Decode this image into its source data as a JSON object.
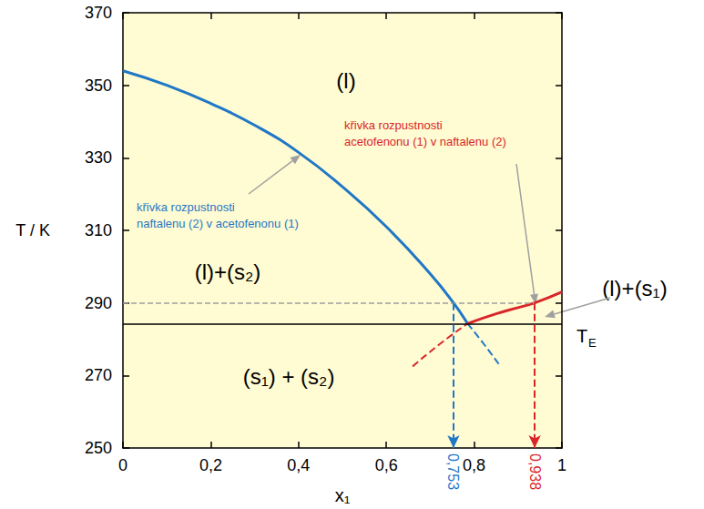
{
  "chart_data": {
    "type": "line",
    "xlabel": "x₁",
    "ylabel": "T / K",
    "xlim": [
      0,
      1
    ],
    "ylim": [
      250,
      370
    ],
    "xticks": [
      0,
      {
        "value": 0.2,
        "label": "0,2"
      },
      {
        "value": 0.4,
        "label": "0,4"
      },
      {
        "value": 0.6,
        "label": "0,6"
      },
      {
        "value": 0.8,
        "label": "0,8"
      },
      1
    ],
    "yticks": [
      250,
      270,
      290,
      310,
      330,
      350,
      370
    ],
    "grid": false,
    "series": [
      {
        "color": "#1f77c6",
        "line_style": "solid",
        "x": [
          0,
          0.1,
          0.2,
          0.3,
          0.4,
          0.5,
          0.6,
          0.7,
          0.753,
          0.785
        ],
        "values": [
          354,
          350,
          345,
          339,
          331.5,
          322,
          311,
          298,
          290,
          284.3
        ]
      },
      {
        "color": "#1f77c6",
        "line_style": "dashed",
        "x": [
          0.785,
          0.82,
          0.86
        ],
        "values": [
          284.3,
          279,
          272.5
        ]
      },
      {
        "color": "#d9262b",
        "line_style": "solid",
        "x": [
          0.785,
          0.85,
          0.9,
          0.938,
          1
        ],
        "values": [
          284.3,
          287,
          288.7,
          290,
          293
        ]
      },
      {
        "color": "#d9262b",
        "line_style": "dashed",
        "x": [
          0.66,
          0.72,
          0.785
        ],
        "values": [
          272.5,
          278.5,
          284.3
        ]
      }
    ],
    "eutectic": {
      "value": 284.3,
      "label": {
        "text": "T",
        "subscript": "E"
      },
      "color": "#000000"
    },
    "isotherm": {
      "value": 290,
      "color": "#a0a0a0",
      "line_style": "dashed"
    },
    "compositions": [
      {
        "value": 0.753,
        "label": "0,753",
        "color": "#1f77c6"
      },
      {
        "value": 0.938,
        "label": "0,938",
        "color": "#d9262b"
      }
    ],
    "regions": [
      "(l)",
      "(l)+(s₂)",
      "(s₁) + (s₂)",
      "(l)+(s₁)"
    ],
    "annotations": [
      {
        "lines": [
          "křivka rozpustnosti",
          "naftalenu (2) v acetofenonu (1)"
        ],
        "color": "#1f77c6"
      },
      {
        "lines": [
          "křivka rozpustnosti",
          "acetofenonu (1) v naftalenu (2)"
        ],
        "color": "#d9262b"
      }
    ]
  }
}
